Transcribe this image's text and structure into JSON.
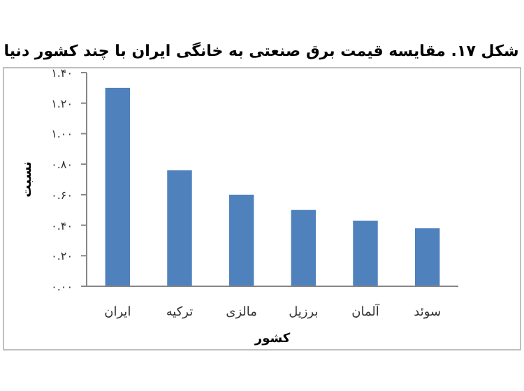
{
  "chart_data": {
    "type": "bar",
    "title": "شکل ۱۷. مقایسه قیمت برق صنعتی به خانگی ایران با چند کشور دنیا",
    "xlabel": "کشور",
    "ylabel": "نسبت",
    "categories": [
      "ایران",
      "ترکیه",
      "مالزی",
      "برزیل",
      "آلمان",
      "سوئد"
    ],
    "values": [
      1.3,
      0.76,
      0.6,
      0.5,
      0.43,
      0.38
    ],
    "color": "#4f81bd",
    "ylim": [
      0,
      1.4
    ],
    "yticks": [
      {
        "value": 0,
        "label": "۰.۰۰"
      },
      {
        "value": 0.2,
        "label": "۰.۲۰"
      },
      {
        "value": 0.4,
        "label": "۰.۴۰"
      },
      {
        "value": 0.6,
        "label": "۰.۶۰"
      },
      {
        "value": 0.8,
        "label": "۰.۸۰"
      },
      {
        "value": 1.0,
        "label": "۱.۰۰"
      },
      {
        "value": 1.2,
        "label": "۱.۲۰"
      },
      {
        "value": 1.4,
        "label": "۱.۴۰"
      }
    ],
    "grid": false
  }
}
